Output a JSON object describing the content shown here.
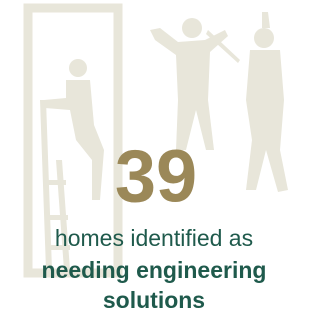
{
  "stat": {
    "value": 39,
    "lines": [
      "homes identified as",
      "needing engineering",
      "solutions"
    ]
  }
}
